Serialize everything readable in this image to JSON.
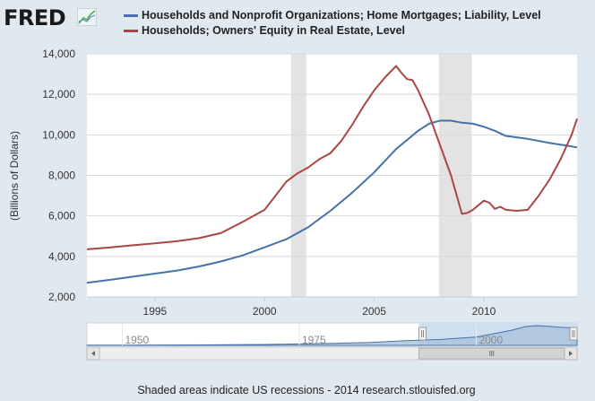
{
  "header": {
    "logo_text": "FRED",
    "logo_icon": "trend-chart-icon"
  },
  "chart_data": {
    "type": "line",
    "ylabel": "(Billions of Dollars)",
    "xlim": [
      1991.9,
      2014.25
    ],
    "ylim": [
      2000,
      14000
    ],
    "yticks": [
      2000,
      4000,
      6000,
      8000,
      10000,
      12000,
      14000
    ],
    "ytick_labels": [
      "2,000",
      "4,000",
      "6,000",
      "8,000",
      "10,000",
      "12,000",
      "14,000"
    ],
    "xticks": [
      1995,
      2000,
      2005,
      2010
    ],
    "xtick_labels": [
      "1995",
      "2000",
      "2005",
      "2010"
    ],
    "grid": true,
    "recessions": [
      [
        2001.2,
        2001.9
      ],
      [
        2007.95,
        2009.45
      ]
    ],
    "series": [
      {
        "name": "Households and Nonprofit Organizations; Home Mortgages; Liability, Level",
        "color": "#4572a7",
        "x": [
          1991.9,
          1993,
          1994,
          1995,
          1996,
          1997,
          1998,
          1999,
          2000,
          2001,
          2002,
          2003,
          2004,
          2005,
          2006,
          2007,
          2007.5,
          2008,
          2008.5,
          2009,
          2009.5,
          2010,
          2010.5,
          2011,
          2012,
          2013,
          2014,
          2014.25
        ],
        "y": [
          2700,
          2850,
          3000,
          3150,
          3300,
          3500,
          3750,
          4050,
          4450,
          4850,
          5450,
          6250,
          7150,
          8150,
          9300,
          10200,
          10550,
          10700,
          10700,
          10600,
          10550,
          10400,
          10200,
          9950,
          9800,
          9600,
          9430,
          9380
        ]
      },
      {
        "name": "Households; Owners' Equity in Real Estate, Level",
        "color": "#aa4643",
        "x": [
          1991.9,
          1993,
          1994,
          1995,
          1996,
          1997,
          1998,
          1999,
          2000,
          2000.5,
          2001,
          2001.5,
          2002,
          2002.5,
          2003,
          2003.5,
          2004,
          2004.5,
          2005,
          2005.5,
          2006,
          2006.25,
          2006.5,
          2006.75,
          2007,
          2007.5,
          2008,
          2008.5,
          2009,
          2009.25,
          2009.5,
          2010,
          2010.25,
          2010.5,
          2010.75,
          2011,
          2011.5,
          2012,
          2012.5,
          2013,
          2013.5,
          2014,
          2014.25
        ],
        "y": [
          4350,
          4450,
          4550,
          4650,
          4750,
          4900,
          5150,
          5700,
          6300,
          7000,
          7700,
          8100,
          8400,
          8800,
          9100,
          9700,
          10500,
          11400,
          12200,
          12850,
          13400,
          13050,
          12750,
          12700,
          12200,
          11000,
          9500,
          8000,
          6100,
          6150,
          6300,
          6750,
          6650,
          6350,
          6450,
          6300,
          6250,
          6300,
          7000,
          7800,
          8800,
          10000,
          10800
        ]
      }
    ]
  },
  "navigator": {
    "tick_labels": [
      "1950",
      "1975",
      "2000"
    ],
    "tick_years": [
      1950,
      1975,
      2000
    ],
    "range": [
      1945,
      2014.25
    ],
    "selected": [
      1991.9,
      2014.25
    ],
    "area": [
      [
        1945,
        120
      ],
      [
        1950,
        150
      ],
      [
        1960,
        250
      ],
      [
        1970,
        480
      ],
      [
        1980,
        1100
      ],
      [
        1985,
        1600
      ],
      [
        1990,
        2600
      ],
      [
        1995,
        3200
      ],
      [
        2000,
        4500
      ],
      [
        2005,
        8200
      ],
      [
        2007,
        10200
      ],
      [
        2008.5,
        10700
      ],
      [
        2010,
        10400
      ],
      [
        2012,
        9800
      ],
      [
        2014.25,
        9380
      ]
    ]
  },
  "footer": {
    "caption": "Shaded areas indicate US recessions - 2014 research.stlouisfed.org"
  }
}
